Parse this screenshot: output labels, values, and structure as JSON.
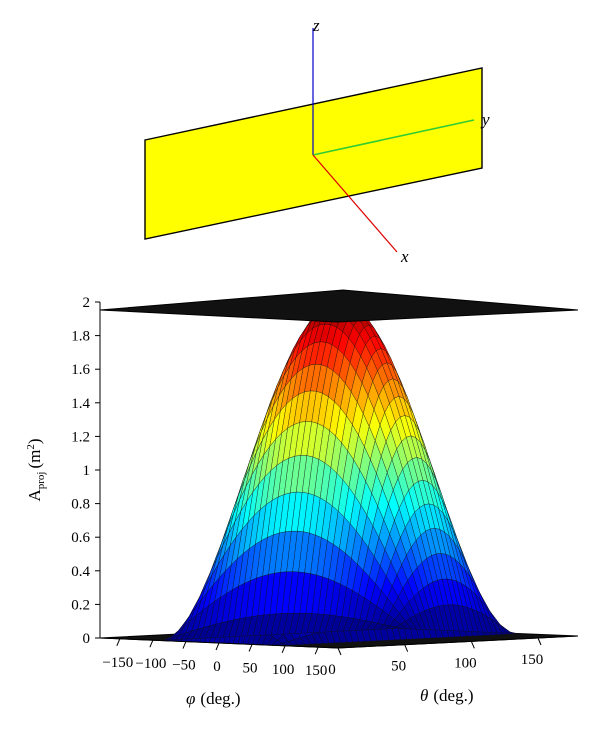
{
  "figure": {
    "plate_color": "#ffff00",
    "axes": [
      {
        "name": "x",
        "color": "#dd0000"
      },
      {
        "name": "y",
        "color": "#33cc33"
      },
      {
        "name": "z",
        "color": "#0000cc"
      }
    ]
  },
  "chart_data": {
    "type": "surface",
    "title": "",
    "zlabel": {
      "main": "A",
      "sub": "proj",
      "unit": "(m",
      "sup": "2",
      "close": ")"
    },
    "xlabel": {
      "symbol": "φ",
      "unit": "(deg.)"
    },
    "ylabel": {
      "symbol": "θ",
      "unit": "(deg.)"
    },
    "phi_range": [
      -180,
      180
    ],
    "theta_range": [
      0,
      180
    ],
    "zlim": [
      0,
      2
    ],
    "z_ticks": [
      "0",
      "0.2",
      "0.4",
      "0.6",
      "0.8",
      "1",
      "1.2",
      "1.4",
      "1.6",
      "1.8",
      "2"
    ],
    "phi_ticks": [
      "−150",
      "−100",
      "−50",
      "0",
      "50",
      "100",
      "150"
    ],
    "theta_ticks": [
      "0",
      "50",
      "100",
      "150"
    ],
    "peak": {
      "phi": 0,
      "theta": 90,
      "value": 2
    },
    "colormap": "jet",
    "grid": true
  }
}
